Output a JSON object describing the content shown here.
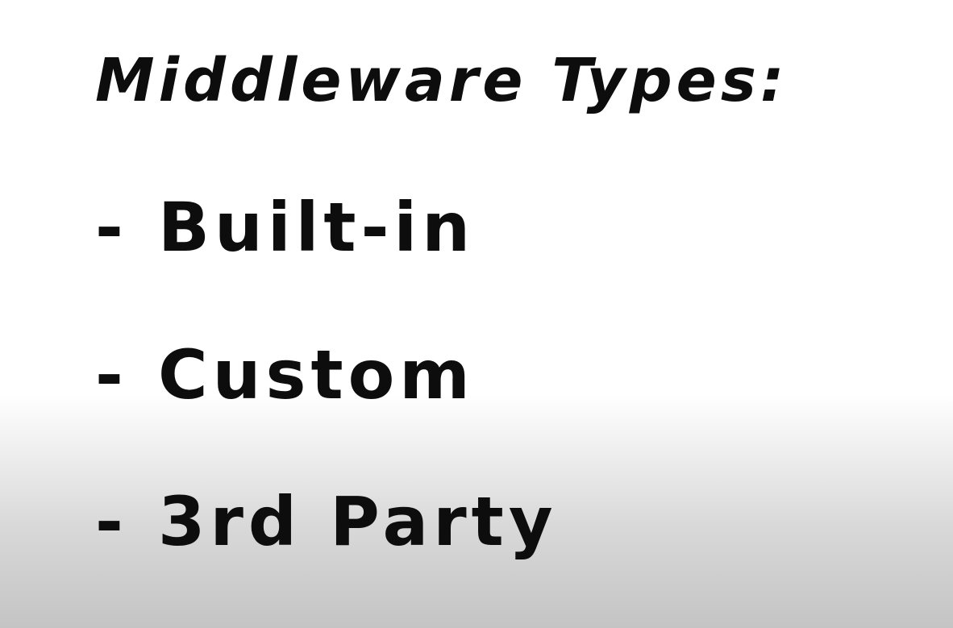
{
  "slide": {
    "title": "Middleware Types:",
    "items": [
      {
        "bullet": "-",
        "label": "Built-in"
      },
      {
        "bullet": "-",
        "label": "Custom"
      },
      {
        "bullet": "-",
        "label": "3rd Party"
      }
    ]
  },
  "colors": {
    "text": "#0d0d0d",
    "background_top": "#ffffff",
    "background_bottom": "#c4c4c4"
  }
}
